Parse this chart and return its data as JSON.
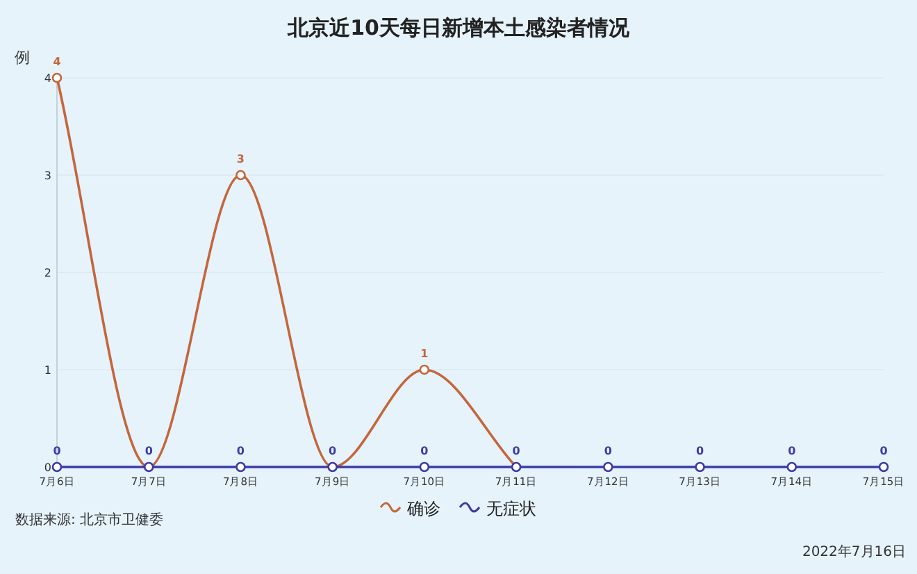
{
  "chart_data": {
    "type": "line",
    "title": "北京近10天每日新增本土感染者情况",
    "ylabel": "例",
    "categories": [
      "7月6日",
      "7月7日",
      "7月8日",
      "7月9日",
      "7月10日",
      "7月11日",
      "7月12日",
      "7月13日",
      "7月14日",
      "7月15日"
    ],
    "series": [
      {
        "name": "确诊",
        "color": "#c4663c",
        "values": [
          4,
          0,
          3,
          0,
          1,
          0,
          null,
          null,
          null,
          null
        ],
        "value_labels": [
          "4",
          null,
          "3",
          null,
          "1",
          null,
          null,
          null,
          null,
          null
        ]
      },
      {
        "name": "无症状",
        "color": "#3b3ba3",
        "values": [
          0,
          0,
          0,
          0,
          0,
          0,
          0,
          0,
          0,
          0
        ],
        "value_labels": [
          "0",
          "0",
          "0",
          "0",
          "0",
          "0",
          "0",
          "0",
          "0",
          "0"
        ]
      }
    ],
    "ylim": [
      0,
      4
    ],
    "yticks": [
      0,
      1,
      2,
      3,
      4
    ],
    "grid": "y",
    "legend": "bottom",
    "marker": "circle",
    "line_style": "solid",
    "annotations": [
      "数据来源: 北京市卫健委",
      "2022年7月16日"
    ]
  }
}
